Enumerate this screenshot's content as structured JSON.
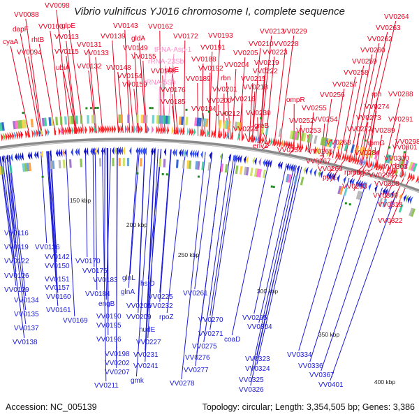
{
  "title": "Vibrio vulnificus YJ016 chromosome I, complete sequence",
  "footer": {
    "accession": "Accession: NC_005139",
    "stats": "Topology: circular; Length: 3,354,505 bp; Genes: 3,386"
  },
  "colors": {
    "forward_label": "#e8001e",
    "reverse_label": "#1a1ad8",
    "rna_label": "#ff8cc6",
    "backbone": "#8a8a8a"
  },
  "scale_labels": [
    "150 kbp",
    "200 kbp",
    "250 kbp",
    "300 kbp",
    "350 kbp",
    "400 kbp"
  ],
  "forward_labels": [
    "cyaA",
    "VV0088",
    "dapF",
    "rhtB",
    "VV0094",
    "VV0098",
    "VV0100",
    "glpE",
    "VV0113",
    "VV0115",
    "ubiA",
    "VV0131",
    "VV0132",
    "VV0133",
    "VV0139",
    "VV0143",
    "VV0148",
    "VV0149",
    "VV0154",
    "VV0155",
    "VV0159",
    "gldA",
    "VV0162",
    "VV0168",
    "VV0172",
    "ubiE",
    "VV0176",
    "VV0185",
    "VV0188",
    "VV0189",
    "VV0191",
    "VV0192",
    "VV0193",
    "VV0194",
    "VV0200",
    "VV0201",
    "VV0204",
    "VV0205",
    "VV0210",
    "rbn",
    "VV0212",
    "VV0213",
    "VV0215",
    "VV0216",
    "VV0218",
    "VV0219",
    "VV0222",
    "VV0223",
    "VV0224",
    "VV0228",
    "VV0229",
    "VV0230",
    "greB",
    "ompR",
    "envZ",
    "VV0251",
    "VV0252",
    "VV0253",
    "VV0254",
    "VV0255",
    "VV0256",
    "VV0257",
    "VV0258",
    "VV0259",
    "VV0260",
    "VV0262",
    "VV0263",
    "VV0264",
    "VV0265",
    "VV0267",
    "VV0268",
    "VV0269",
    "pyrE",
    "VV0272",
    "VV0273",
    "VV0274",
    "rph",
    "VV0288",
    "VV0289",
    "VV0291",
    "rpmG",
    "VV0284",
    "radC",
    "rpmB",
    "VV0293",
    "VV0298",
    "VV0299",
    "VV0300",
    "VV0301",
    "VV0303",
    "VV0308",
    "VV0309",
    "VV0318",
    "VV0322"
  ],
  "rna_labels": [
    "tRNA-Asp-1",
    "rRNA-23Sb",
    "rRNA-5Sb"
  ],
  "reverse_labels": [
    "VV0116",
    "VV0119",
    "VV0122",
    "VV0126",
    "VV0129",
    "VV0134",
    "VV0135",
    "VV0137",
    "VV0138",
    "VV0136",
    "VV0142",
    "VV0150",
    "VV0151",
    "VV0157",
    "VV0160",
    "VV0161",
    "VV0169",
    "VV0170",
    "VV0175",
    "VV0183",
    "VV0184",
    "engB",
    "VV0190",
    "VV0195",
    "VV0196",
    "VV0198",
    "VV0202",
    "VV0207",
    "VV0211",
    "glnL",
    "glnA",
    "hslO",
    "VV0206",
    "VV0209",
    "VV0225",
    "VV0232",
    "nudE",
    "VV0227",
    "VV0231",
    "VV0241",
    "rpoZ",
    "gmk",
    "VV0261",
    "VV0270",
    "VV0271",
    "VV0275",
    "VV0276",
    "VV0277",
    "VV0278",
    "coaD",
    "VV0295",
    "VV0304",
    "VV0323",
    "VV0324",
    "VV0325",
    "VV0326",
    "VV0334",
    "VV0336",
    "VV0367",
    "VV0401"
  ]
}
